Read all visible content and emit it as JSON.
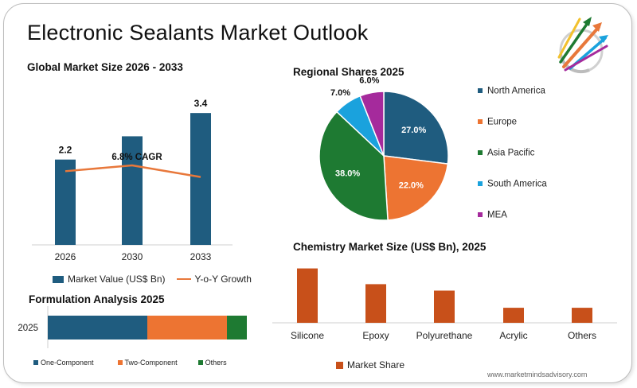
{
  "page": {
    "title": "Electronic Sealants Market Outlook",
    "site": "www.marketmindsadvisory.com"
  },
  "colors": {
    "bar_primary": "#1F5C7F",
    "growth_line": "#E8783B",
    "north_america": "#1F5C7F",
    "europe": "#ED7432",
    "asia_pacific": "#1E7A32",
    "south_america": "#1AA2DD",
    "mea": "#A52A9C",
    "chemistry_bar": "#C8501A",
    "others_green": "#1E7A32"
  },
  "chart_data": [
    {
      "id": "global",
      "type": "bar",
      "title": "Global Market Size 2026 - 2033",
      "categories": [
        "2026",
        "2030",
        "2033"
      ],
      "series": [
        {
          "name": "Market Value (US$ Bn)",
          "values": [
            2.2,
            2.8,
            3.4
          ]
        },
        {
          "name": "Y-o-Y Growth",
          "type": "line",
          "values": [
            1.9,
            2.05,
            1.75
          ]
        }
      ],
      "data_labels": [
        "2.2",
        "",
        "3.4"
      ],
      "annotation": "6.8% CAGR",
      "ylim": [
        0,
        4.1
      ],
      "grid": false,
      "legend": "bottom"
    },
    {
      "id": "regional",
      "type": "pie",
      "title": "Regional Shares 2025",
      "labels": [
        "North America",
        "Europe",
        "Asia Pacific",
        "South America",
        "MEA"
      ],
      "values": [
        27.0,
        22.0,
        38.0,
        7.0,
        6.0
      ],
      "value_labels": [
        "27.0%",
        "22.0%",
        "38.0%",
        "7.0%",
        "6.0%"
      ],
      "legend": "right"
    },
    {
      "id": "chemistry",
      "type": "bar",
      "title": "Chemistry Market Size (US$ Bn), 2025",
      "categories": [
        "Silicone",
        "Epoxy",
        "Polyurethane",
        "Acrylic",
        "Others"
      ],
      "series": [
        {
          "name": "Market Share",
          "values": [
            0.38,
            0.27,
            0.225,
            0.105,
            0.105
          ]
        }
      ],
      "ylim": [
        0,
        0.4
      ],
      "grid": false,
      "legend": "bottom"
    },
    {
      "id": "formulation",
      "type": "bar",
      "orientation": "horizontal-stacked",
      "title": "Formulation Analysis 2025",
      "categories": [
        "2025"
      ],
      "series": [
        {
          "name": "One-Component",
          "values": [
            50
          ]
        },
        {
          "name": "Two-Component",
          "values": [
            40
          ]
        },
        {
          "name": "Others",
          "values": [
            10
          ]
        }
      ],
      "xlim": [
        0,
        100
      ],
      "legend": "bottom"
    }
  ]
}
